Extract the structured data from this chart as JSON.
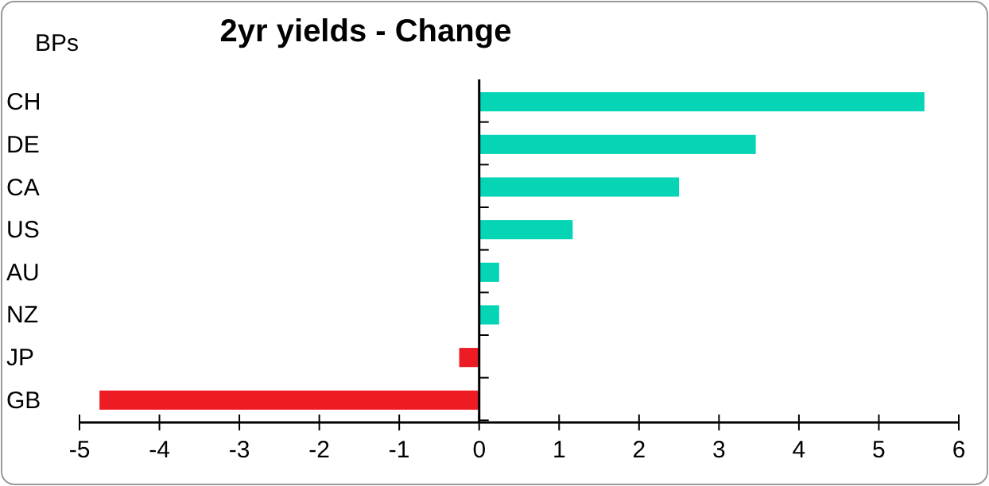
{
  "chart_data": {
    "type": "bar",
    "orientation": "horizontal",
    "title": "2yr yields - Change",
    "ylabel": "BPs",
    "categories": [
      "CH",
      "DE",
      "CA",
      "US",
      "AU",
      "NZ",
      "JP",
      "GB"
    ],
    "values": [
      5.57,
      3.46,
      2.5,
      1.17,
      0.25,
      0.25,
      -0.25,
      -4.75
    ],
    "colors": [
      "#05d5b5",
      "#05d5b5",
      "#05d5b5",
      "#05d5b5",
      "#05d5b5",
      "#05d5b5",
      "#ed1c24",
      "#ed1c24"
    ],
    "xlim": [
      -5,
      6
    ],
    "xticks": [
      -5,
      -4,
      -3,
      -2,
      -1,
      0,
      1,
      2,
      3,
      4,
      5,
      6
    ]
  }
}
